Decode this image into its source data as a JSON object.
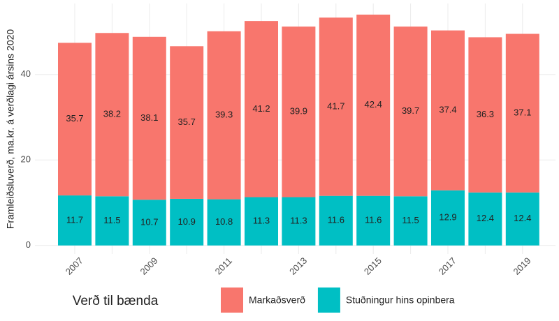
{
  "chart_data": {
    "type": "stacked-bar",
    "y_label": "Framleiðsluverð, ma.kr. á verðlagi ársins 2020",
    "legend_title": "Verð til bænda",
    "categories": [
      "2007",
      null,
      "2009",
      null,
      "2011",
      null,
      "2013",
      null,
      "2015",
      null,
      "2017",
      null,
      "2019"
    ],
    "series": [
      {
        "name": "Markaðsverð",
        "color": "#F8766D",
        "values": [
          35.7,
          38.2,
          38.1,
          35.7,
          39.3,
          41.2,
          39.9,
          41.7,
          42.4,
          39.7,
          37.4,
          36.3,
          37.1
        ]
      },
      {
        "name": "Stuðningur hins opinbera",
        "color": "#00BFC4",
        "values": [
          11.7,
          11.5,
          10.7,
          10.9,
          10.8,
          11.3,
          11.3,
          11.6,
          11.6,
          11.5,
          12.9,
          12.4,
          12.4
        ]
      }
    ],
    "ylim": [
      -2,
      56.6
    ],
    "yticks": [
      0,
      20,
      40
    ],
    "grid": true,
    "legend_position": "bottom"
  }
}
